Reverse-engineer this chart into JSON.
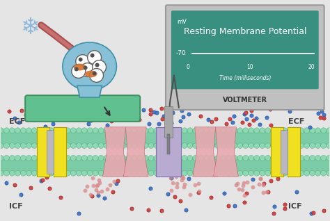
{
  "bg_color": "#e5e5e5",
  "voltmeter_box_color": "#c0c0c0",
  "voltmeter_screen_color": "#3a9080",
  "voltmeter_label": "VOLTMETER",
  "screen_title": "Resting Membrane Potential",
  "screen_mv_label": "mV",
  "screen_y_label": "-70",
  "screen_x_ticks": [
    "0",
    "10",
    "20"
  ],
  "screen_x_axis_label": "Time (milliseconds)",
  "membrane_color": "#7dcca8",
  "ecf_label": "ECF",
  "icf_label": "ICF",
  "yellow_channel_color": "#f0e020",
  "pink_channel_color": "#e8a8b0",
  "purple_channel_color": "#b8aad0",
  "grey_channel_color": "#b0b0b8",
  "dot_blue": "#4878c8",
  "dot_red": "#d04848",
  "dot_pink_cluster": "#d88888",
  "neuron_body_color": "#88c0d8",
  "axon_color": "#a85050",
  "snowflake_color": "#90b8d8",
  "probe_color": "#a8a8a8",
  "synapse_pad_color": "#60c090",
  "synapse_pad_edge": "#409060"
}
